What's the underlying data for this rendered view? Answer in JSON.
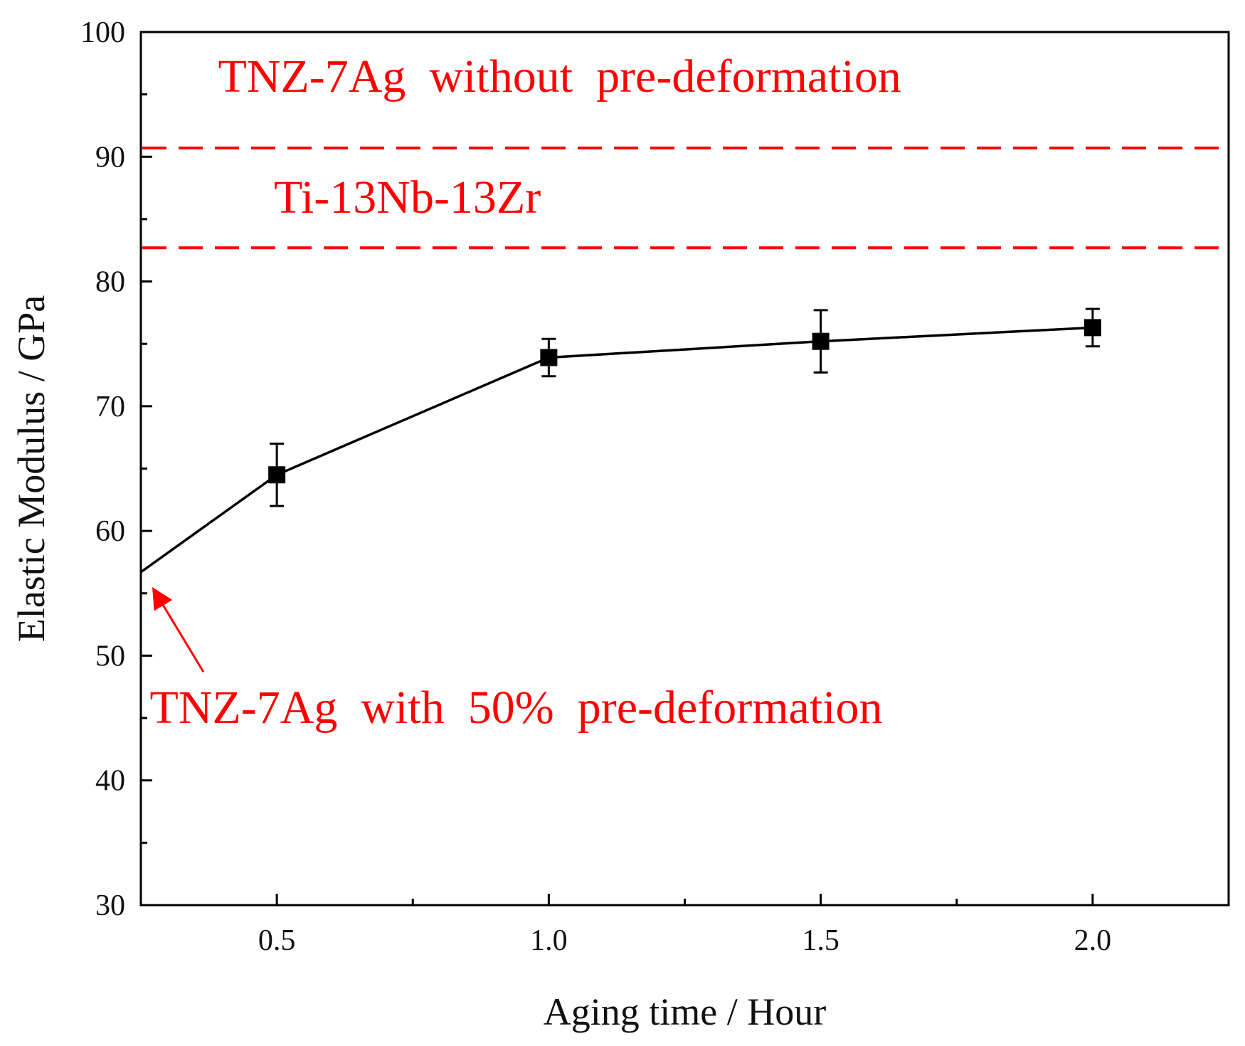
{
  "chart_data": {
    "type": "line",
    "title": "",
    "xlabel": "Aging time / Hour",
    "ylabel": "Elastic Modulus / GPa",
    "xlim": [
      0.25,
      2.25
    ],
    "ylim": [
      30,
      100
    ],
    "x_ticks": [
      0.5,
      1.0,
      1.5,
      2.0
    ],
    "x_tick_labels": [
      "0.5",
      "1.0",
      "1.5",
      "2.0"
    ],
    "x_minor_ticks": [
      0.75,
      1.25,
      1.75
    ],
    "y_ticks": [
      30,
      40,
      50,
      60,
      70,
      80,
      90,
      100
    ],
    "y_tick_labels": [
      "30",
      "40",
      "50",
      "60",
      "70",
      "80",
      "90",
      "100"
    ],
    "y_minor_ticks": [
      35,
      45,
      55,
      65,
      75,
      85,
      95
    ],
    "grid": false,
    "series": [
      {
        "name": "TNZ-7Ag with 50% pre-deformation",
        "color": "#000000",
        "line_start": {
          "x": 0.25,
          "y": 56.7
        },
        "x": [
          0.5,
          1.0,
          1.5,
          2.0
        ],
        "y": [
          64.5,
          73.9,
          75.2,
          76.3
        ],
        "error": [
          2.5,
          1.5,
          2.5,
          1.5
        ]
      }
    ],
    "reference_lines": [
      {
        "label": "TNZ-7Ag  without  pre-deformation",
        "y": 90.7,
        "color": "#ff0000",
        "style": "dashed"
      },
      {
        "label": "Ti-13Nb-13Zr",
        "y": 82.7,
        "color": "#ff0000",
        "style": "dashed"
      }
    ],
    "annotations": [
      {
        "text": "TNZ-7Ag  without  pre-deformation",
        "x": 1.02,
        "y": 95.2,
        "color": "#ff0000"
      },
      {
        "text": "Ti-13Nb-13Zr",
        "x": 0.74,
        "y": 85.5,
        "color": "#ff0000"
      },
      {
        "text": "TNZ-7Ag  with  50%  pre-deformation",
        "x": 0.94,
        "y": 44.6,
        "color": "#ff0000"
      }
    ],
    "arrow": {
      "from": {
        "x": 0.365,
        "y": 48.7
      },
      "to": {
        "x": 0.275,
        "y": 55.2
      },
      "color": "#ff0000"
    }
  }
}
